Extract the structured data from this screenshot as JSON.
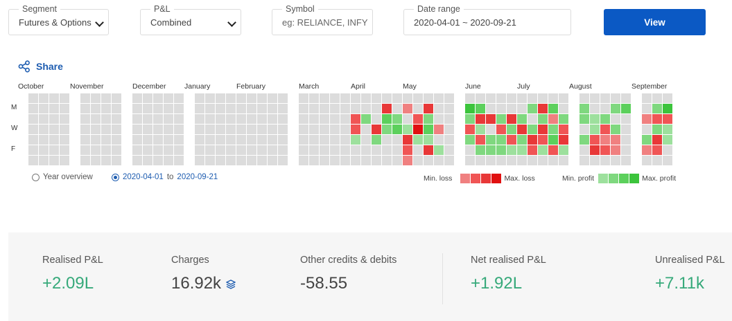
{
  "filters": {
    "segment": {
      "label": "Segment",
      "value": "Futures & Options"
    },
    "pnl": {
      "label": "P&L",
      "value": "Combined"
    },
    "symbol": {
      "label": "Symbol",
      "placeholder": "eg: RELIANCE, INFY"
    },
    "date_range": {
      "label": "Date range",
      "value": "2020-04-01 ~ 2020-09-21"
    },
    "view_button": "View"
  },
  "share": {
    "label": "Share",
    "icon": "share-icon"
  },
  "heatmap": {
    "months": [
      "October",
      "November",
      "December",
      "January",
      "February",
      "March",
      "April",
      "May",
      "June",
      "July",
      "August",
      "September"
    ],
    "day_labels": [
      "M",
      "W",
      "F"
    ],
    "colors": {
      "empty": "#dcdcdc",
      "loss": [
        "#f08080",
        "#f05555",
        "#e83838",
        "#e01010"
      ],
      "profit": [
        "#9de09d",
        "#7fd87f",
        "#5cd05c",
        "#3cc43c"
      ]
    }
  },
  "range_toggle": {
    "year_overview": "Year overview",
    "from": "2020-04-01",
    "to_word": "to",
    "to": "2020-09-21"
  },
  "legend": {
    "min_loss": "Min. loss",
    "max_loss": "Max. loss",
    "min_profit": "Min. profit",
    "max_profit": "Max. profit"
  },
  "summary": {
    "realised": {
      "label": "Realised P&L",
      "value": "+2.09L"
    },
    "charges": {
      "label": "Charges",
      "value": "16.92k",
      "icon": "layers-icon"
    },
    "other": {
      "label": "Other credits & debits",
      "value": "-58.55"
    },
    "net_realised": {
      "label": "Net realised P&L",
      "value": "+1.92L"
    },
    "unrealised": {
      "label": "Unrealised P&L",
      "value": "+7.11k"
    }
  }
}
